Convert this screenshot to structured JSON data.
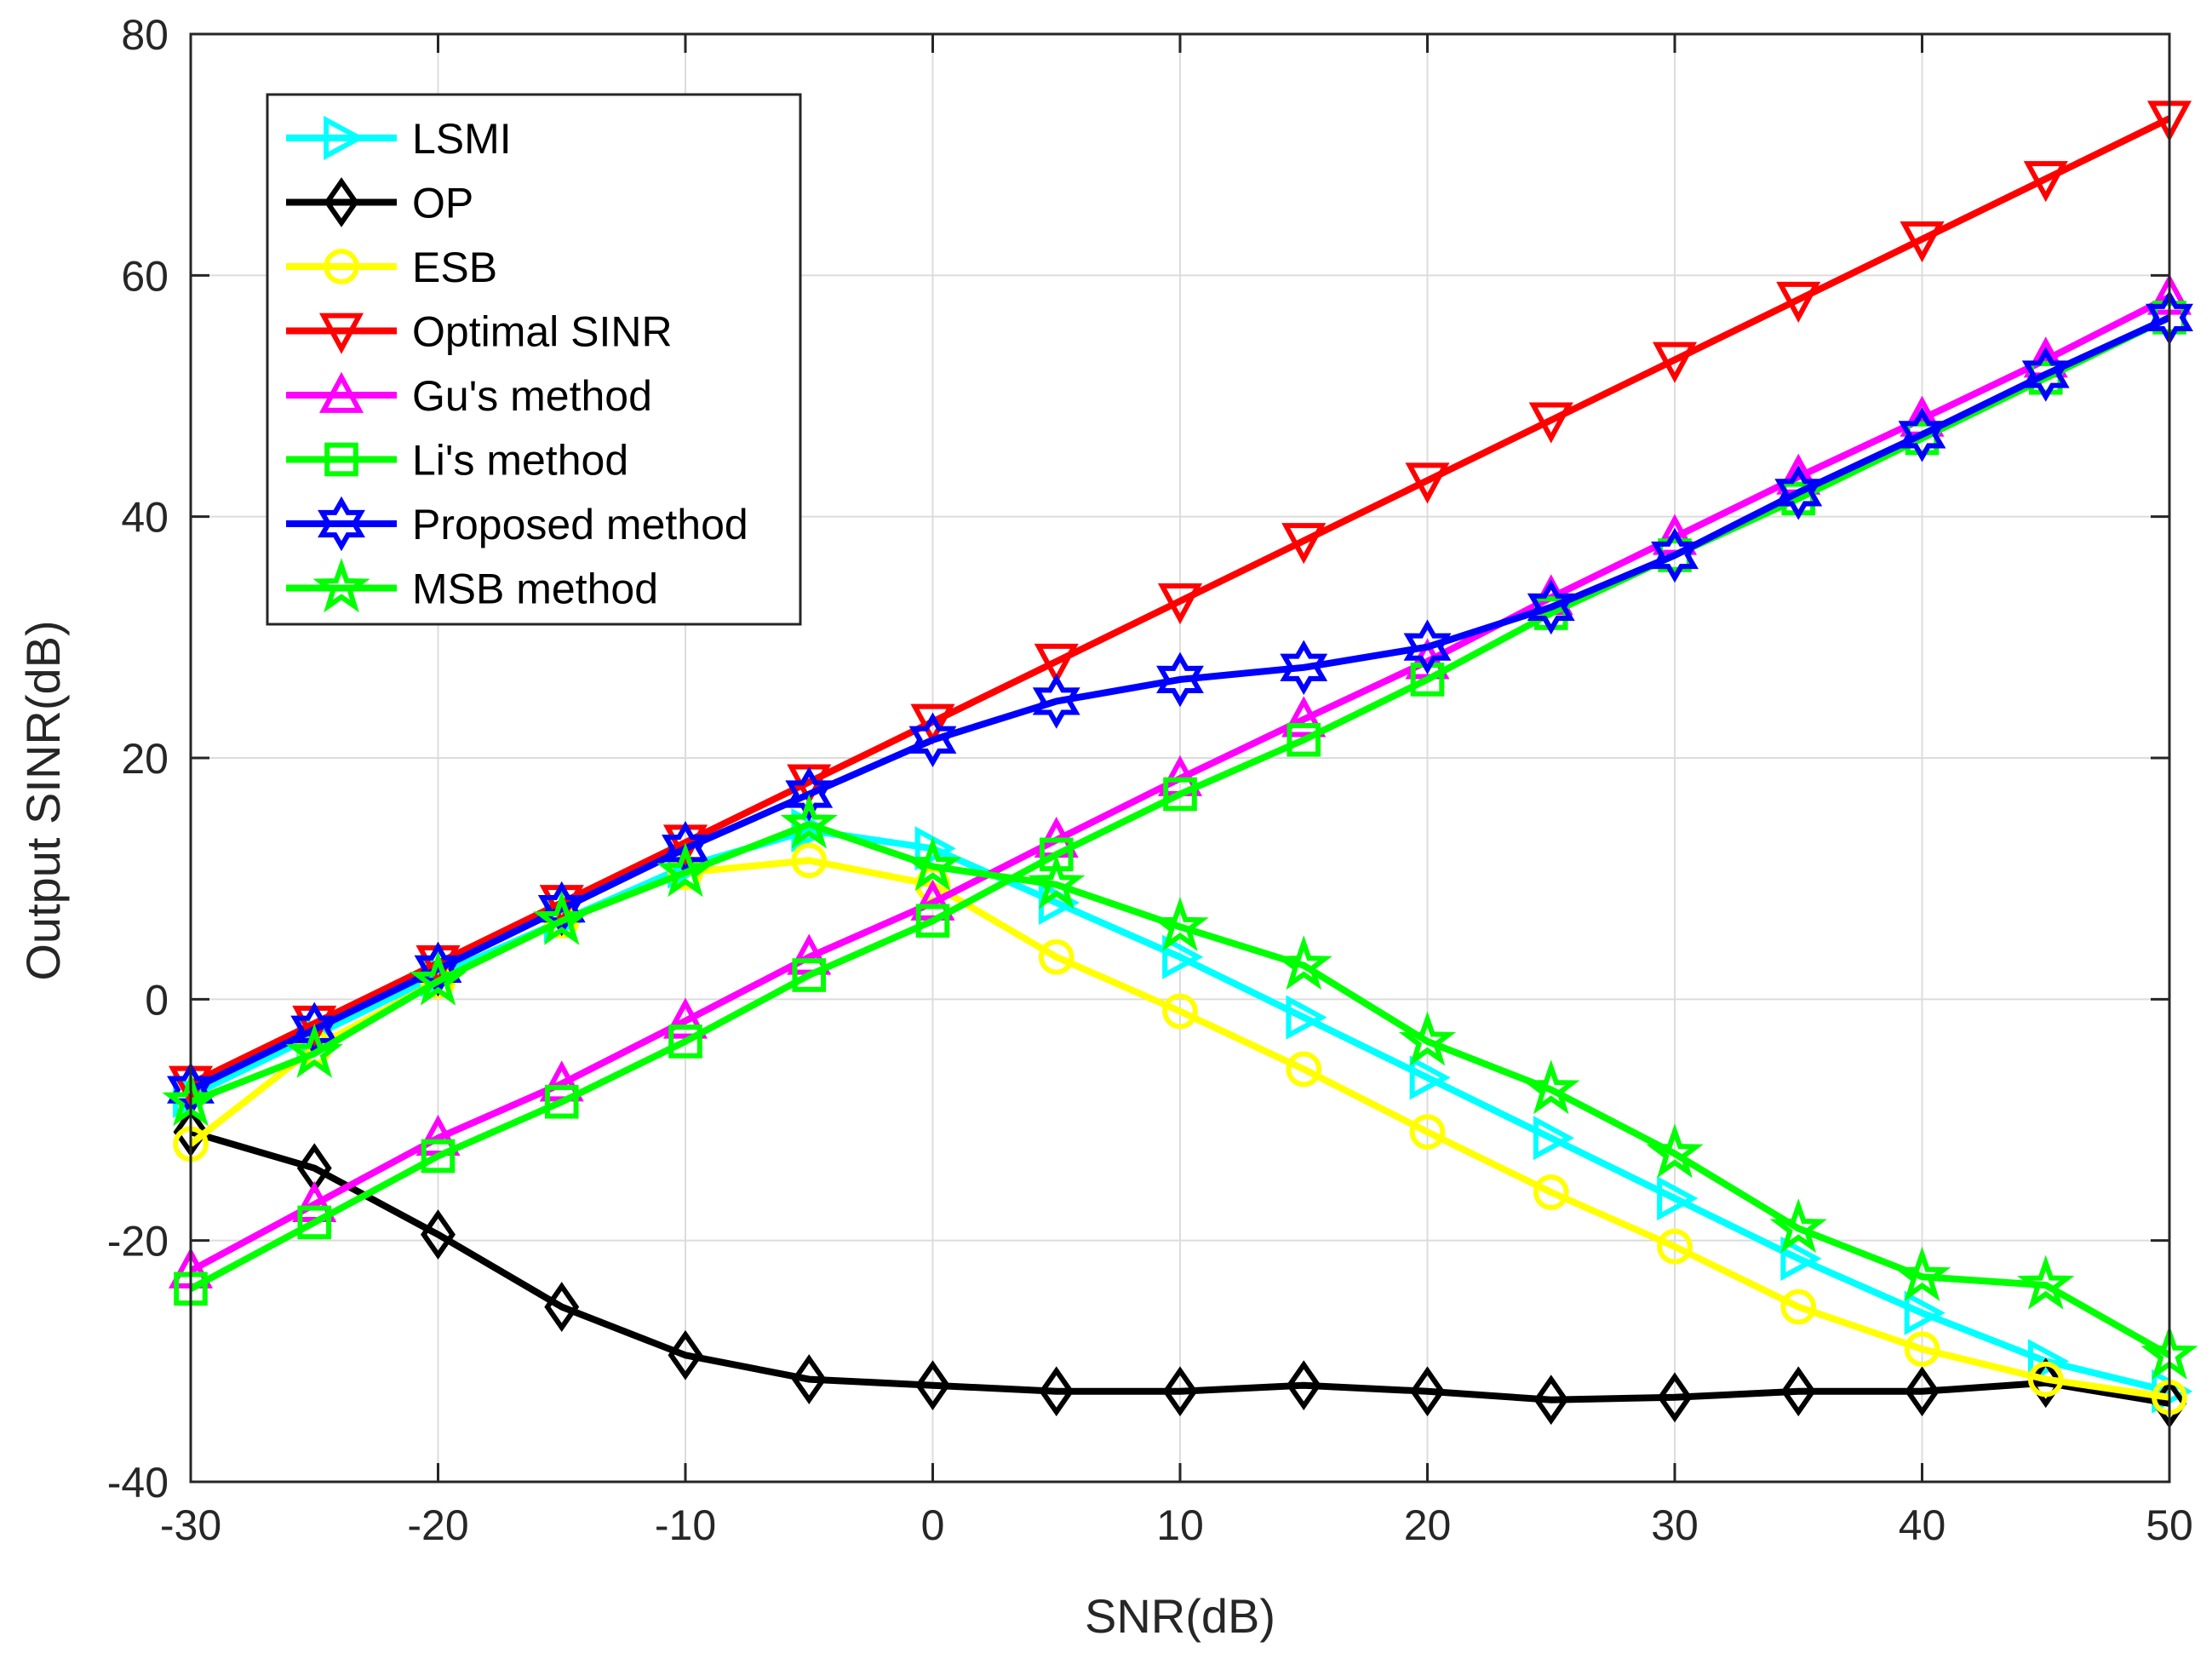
{
  "chart_data": {
    "type": "line",
    "title": "",
    "xlabel": "SNR(dB)",
    "ylabel": "Output SINR(dB)",
    "xlim": [
      -30,
      50
    ],
    "ylim": [
      -40,
      80
    ],
    "x": [
      -30,
      -25,
      -20,
      -15,
      -10,
      -5,
      0,
      5,
      10,
      15,
      20,
      25,
      30,
      35,
      40,
      45,
      50
    ],
    "xticks": [
      -30,
      -20,
      -10,
      0,
      10,
      20,
      30,
      40,
      50
    ],
    "yticks": [
      -40,
      -20,
      0,
      20,
      40,
      60,
      80
    ],
    "xtick_labels": [
      "-30",
      "-20",
      "-10",
      "0",
      "10",
      "20",
      "30",
      "40",
      "50"
    ],
    "ytick_labels": [
      "-40",
      "-20",
      "0",
      "20",
      "40",
      "60",
      "80"
    ],
    "grid": true,
    "legend_position": "top-left",
    "series": [
      {
        "name": "LSMI",
        "color": "#00ffff",
        "marker": "triangle-right",
        "values": [
          -8,
          -3,
          2,
          6.5,
          11,
          14,
          12.5,
          8,
          3.5,
          -1.5,
          -6.5,
          -11.5,
          -16.5,
          -21.5,
          -26,
          -30,
          -32.5
        ]
      },
      {
        "name": "OP",
        "color": "#000000",
        "marker": "diamond",
        "values": [
          -11,
          -14,
          -19.5,
          -25.5,
          -29.5,
          -31.5,
          -32,
          -32.5,
          -32.5,
          -32,
          -32.5,
          -33.2,
          -33,
          -32.5,
          -32.5,
          -31.8,
          -33.5
        ]
      },
      {
        "name": "ESB",
        "color": "#ffff00",
        "marker": "circle",
        "values": [
          -12,
          -4,
          1.5,
          6.5,
          10.5,
          11.5,
          9.5,
          3.5,
          -1,
          -5.8,
          -11,
          -16,
          -20.5,
          -25.5,
          -29,
          -31.5,
          -33
        ]
      },
      {
        "name": "Optimal SINR",
        "color": "#ff0000",
        "marker": "triangle-down",
        "values": [
          -7,
          -2,
          3,
          8,
          13,
          18,
          23,
          28,
          33,
          38,
          43,
          48,
          53,
          58,
          63,
          68,
          73
        ]
      },
      {
        "name": "Gu's method",
        "color": "#ff00ff",
        "marker": "triangle-up",
        "values": [
          -22.5,
          -17,
          -11.5,
          -7,
          -1.8,
          3.5,
          8,
          13.2,
          18.3,
          23.2,
          28,
          33.3,
          38.3,
          43.3,
          48.1,
          53,
          58.2
        ]
      },
      {
        "name": "Li's method",
        "color": "#00ff00",
        "marker": "square",
        "values": [
          -24,
          -18.5,
          -13,
          -8.5,
          -3.5,
          2,
          6.5,
          12,
          17,
          21.5,
          26.5,
          32,
          36.8,
          41.5,
          46.5,
          51.5,
          56.5
        ]
      },
      {
        "name": "Proposed method",
        "color": "#0000ff",
        "marker": "hexagram",
        "values": [
          -7.5,
          -2.5,
          2.5,
          7.5,
          12.5,
          17,
          21.5,
          24.7,
          26.5,
          27.5,
          29.2,
          32.5,
          36.8,
          42,
          46.8,
          51.8,
          56.5
        ]
      },
      {
        "name": "MSB method",
        "color": "#00ff00",
        "marker": "star",
        "values": [
          -8.5,
          -4.5,
          1.5,
          6.5,
          10.5,
          14.5,
          11,
          9.5,
          6,
          2.8,
          -3.5,
          -7.5,
          -12.8,
          -19,
          -23,
          -23.7,
          -29.5
        ]
      }
    ]
  }
}
